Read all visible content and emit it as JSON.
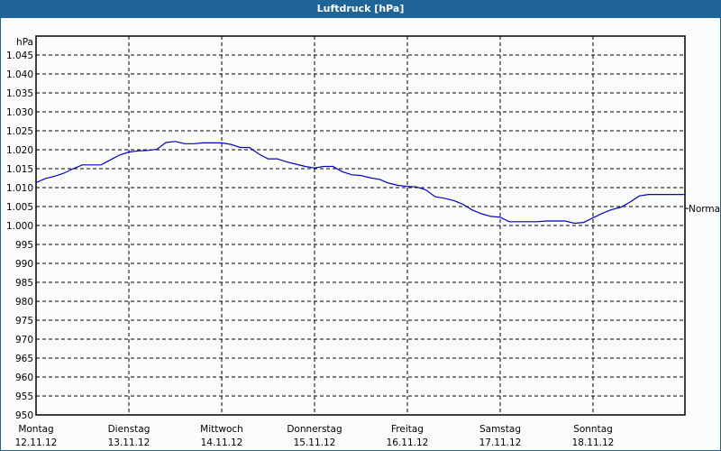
{
  "window": {
    "title": "Luftdruck [hPa]"
  },
  "chart_data": {
    "type": "line",
    "title": "Luftdruck [hPa]",
    "ylabel": "hPa",
    "xlabel": "",
    "ylim": [
      950,
      1050
    ],
    "grid": true,
    "y_ticks": [
      "1.045",
      "1.040",
      "1.035",
      "1.030",
      "1.025",
      "1.020",
      "1.015",
      "1.010",
      "1.005",
      "1.000",
      "995",
      "990",
      "985",
      "980",
      "975",
      "970",
      "965",
      "960",
      "955",
      "950"
    ],
    "y_tick_values": [
      1045,
      1040,
      1035,
      1030,
      1025,
      1020,
      1015,
      1010,
      1005,
      1000,
      995,
      990,
      985,
      980,
      975,
      970,
      965,
      960,
      955,
      950
    ],
    "categories": [
      {
        "day": "Montag",
        "date": "12.11.12"
      },
      {
        "day": "Dienstag",
        "date": "13.11.12"
      },
      {
        "day": "Mittwoch",
        "date": "14.11.12"
      },
      {
        "day": "Donnerstag",
        "date": "15.11.12"
      },
      {
        "day": "Freitag",
        "date": "16.11.12"
      },
      {
        "day": "Samstag",
        "date": "17.11.12"
      },
      {
        "day": "Sonntag",
        "date": "18.11.12"
      }
    ],
    "reference_line": {
      "label": "Normal",
      "value": 1004.5
    },
    "series": [
      {
        "name": "Luftdruck",
        "color": "#0000c0",
        "x_days": [
          0,
          0.1,
          0.2,
          0.3,
          0.4,
          0.5,
          0.6,
          0.7,
          0.8,
          0.9,
          1.0,
          1.1,
          1.2,
          1.3,
          1.4,
          1.5,
          1.6,
          1.7,
          1.8,
          1.9,
          2.0,
          2.1,
          2.2,
          2.3,
          2.4,
          2.5,
          2.6,
          2.7,
          2.8,
          2.9,
          3.0,
          3.1,
          3.2,
          3.3,
          3.4,
          3.5,
          3.6,
          3.7,
          3.8,
          3.9,
          4.0,
          4.1,
          4.2,
          4.3,
          4.4,
          4.5,
          4.6,
          4.7,
          4.8,
          4.9,
          5.0,
          5.1,
          5.2,
          5.3,
          5.4,
          5.5,
          5.6,
          5.7,
          5.8,
          5.9,
          6.0,
          6.1,
          6.2,
          6.3,
          6.4,
          6.5,
          6.6,
          6.7,
          6.8,
          6.9,
          7.0
        ],
        "values": [
          1011.3,
          1012.4,
          1013.0,
          1013.8,
          1015.0,
          1016.0,
          1016.0,
          1016.0,
          1017.3,
          1018.6,
          1019.4,
          1019.7,
          1019.8,
          1020.1,
          1021.9,
          1022.2,
          1021.6,
          1021.6,
          1021.8,
          1021.8,
          1021.8,
          1021.4,
          1020.6,
          1020.6,
          1018.9,
          1017.6,
          1017.6,
          1016.8,
          1016.2,
          1015.6,
          1015.2,
          1015.6,
          1015.6,
          1014.2,
          1013.4,
          1013.2,
          1012.6,
          1012.2,
          1011.2,
          1010.6,
          1010.3,
          1010.2,
          1009.4,
          1007.6,
          1007.2,
          1006.6,
          1005.6,
          1004.1,
          1003.1,
          1002.4,
          1002.2,
          1001.0,
          1001.0,
          1001.0,
          1001.0,
          1001.2,
          1001.2,
          1001.2,
          1000.6,
          1000.8,
          1002.0,
          1003.2,
          1004.2,
          1004.8,
          1006.2,
          1007.8,
          1008.2,
          1008.2,
          1008.2,
          1008.2,
          1008.2
        ]
      }
    ]
  }
}
